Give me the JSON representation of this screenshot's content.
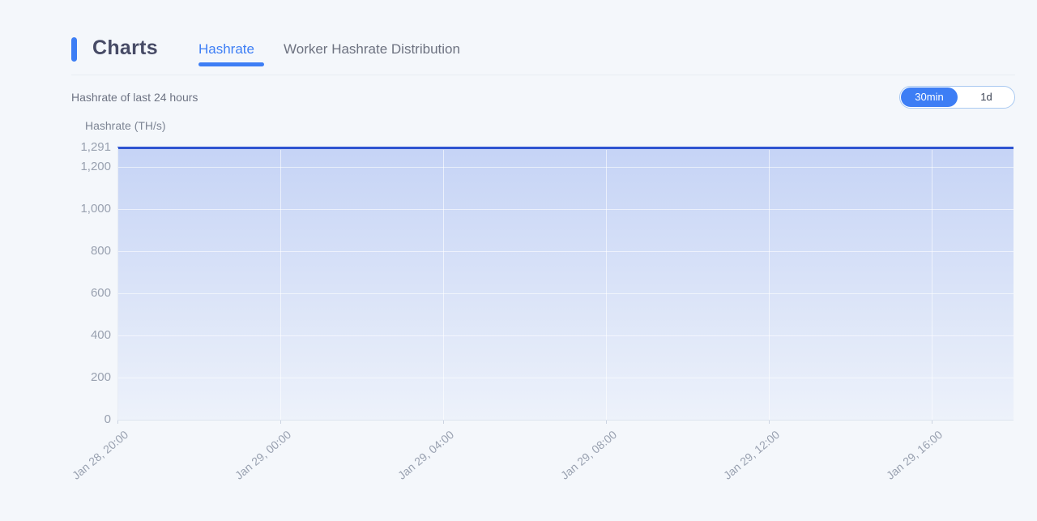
{
  "page": {
    "title": "Charts"
  },
  "tabs": [
    {
      "label": "Hashrate",
      "active": true
    },
    {
      "label": "Worker Hashrate Distribution",
      "active": false
    }
  ],
  "subtitle": "Hashrate of last 24 hours",
  "range_toggle": {
    "options": [
      {
        "label": "30min",
        "active": true
      },
      {
        "label": "1d",
        "active": false
      }
    ]
  },
  "colors": {
    "accent": "#3d7ef5",
    "line": "#2e54d1",
    "page_background": "#f4f7fb",
    "muted_text": "#6d7383",
    "axis_text": "#99a1b0"
  },
  "chart_data": {
    "type": "area",
    "title": "Hashrate of last 24 hours",
    "xlabel": "",
    "ylabel": "Hashrate (TH/s)",
    "x_ticks": [
      "Jan 28, 20:00",
      "Jan 29, 00:00",
      "Jan 29, 04:00",
      "Jan 29, 08:00",
      "Jan 29, 12:00",
      "Jan 29, 16:00"
    ],
    "x_span_hours": 22,
    "x_tick_interval_hours": 4,
    "series": [
      {
        "name": "Hashrate",
        "values": [
          1291,
          1291,
          1291,
          1291,
          1291,
          1291
        ]
      }
    ],
    "y_ticks": [
      {
        "value": 0,
        "label": "0"
      },
      {
        "value": 200,
        "label": "200"
      },
      {
        "value": 400,
        "label": "400"
      },
      {
        "value": 600,
        "label": "600"
      },
      {
        "value": 800,
        "label": "800"
      },
      {
        "value": 1000,
        "label": "1,000"
      },
      {
        "value": 1200,
        "label": "1,200"
      },
      {
        "value": 1291,
        "label": "1,291"
      }
    ],
    "ylim": [
      0,
      1291
    ],
    "grid": true,
    "legend_position": "none",
    "colors": {
      "line": "#2e54d1",
      "fill_top": "rgba(64,110,230,0.26)",
      "fill_bottom": "rgba(64,110,230,0.04)"
    }
  }
}
